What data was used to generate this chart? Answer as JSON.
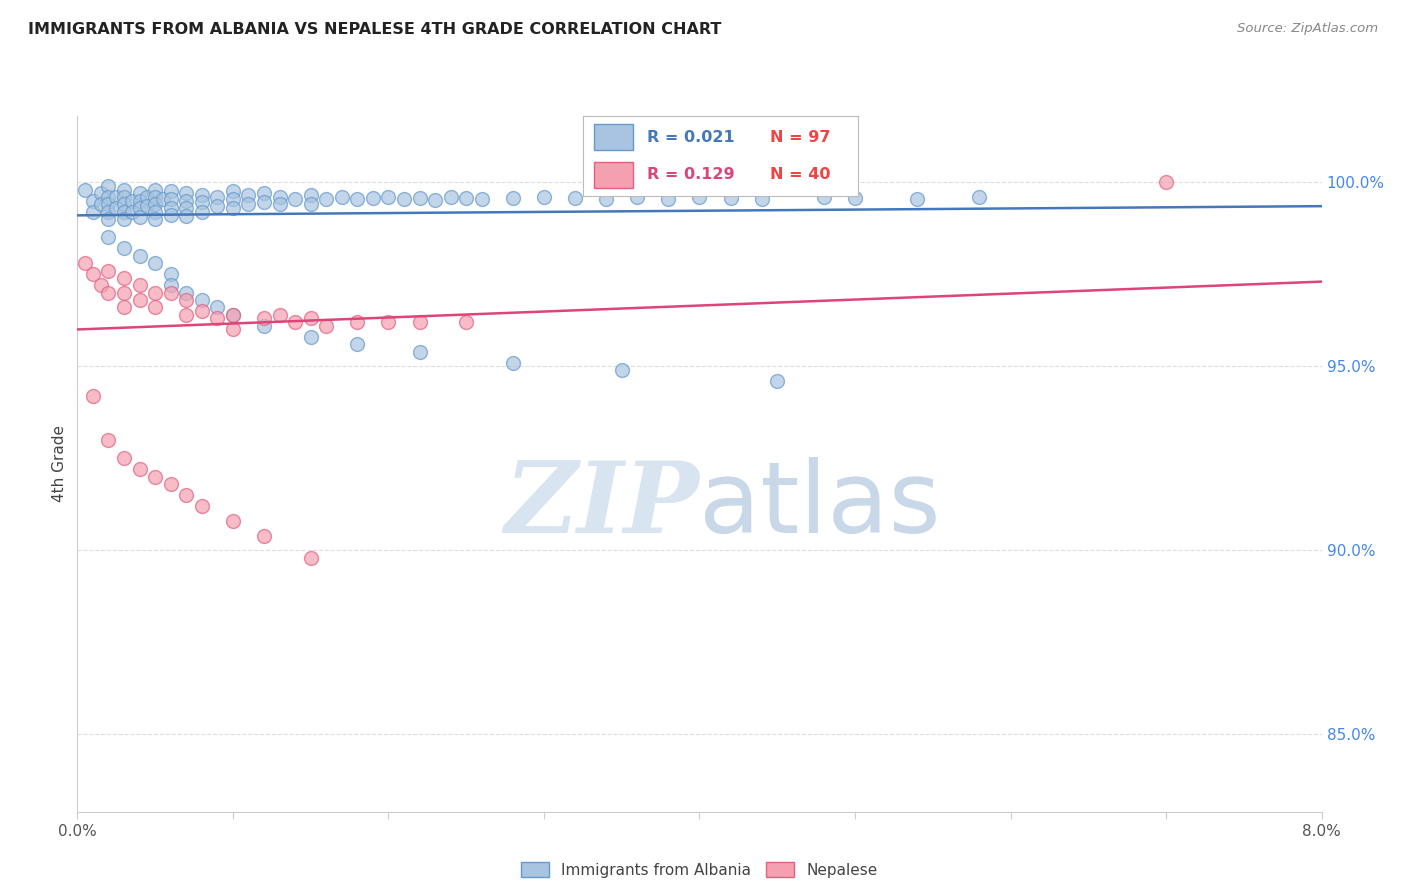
{
  "title": "IMMIGRANTS FROM ALBANIA VS NEPALESE 4TH GRADE CORRELATION CHART",
  "source": "Source: ZipAtlas.com",
  "ylabel": "4th Grade",
  "y_tick_labels": [
    "85.0%",
    "90.0%",
    "95.0%",
    "100.0%"
  ],
  "y_tick_values": [
    0.85,
    0.9,
    0.95,
    1.0
  ],
  "xlim": [
    0.0,
    0.08
  ],
  "ylim": [
    0.829,
    1.018
  ],
  "legend_blue_r": "R = 0.021",
  "legend_blue_n": "N = 97",
  "legend_pink_r": "R = 0.129",
  "legend_pink_n": "N = 40",
  "color_blue_face": "#A8C4E0",
  "color_blue_edge": "#6699CC",
  "color_pink_face": "#F4A0B0",
  "color_pink_edge": "#E06080",
  "color_blue_line": "#4477BB",
  "color_pink_line": "#DD4477",
  "blue_scatter_x": [
    0.0005,
    0.001,
    0.001,
    0.0015,
    0.0015,
    0.002,
    0.002,
    0.002,
    0.002,
    0.002,
    0.0025,
    0.0025,
    0.003,
    0.003,
    0.003,
    0.003,
    0.003,
    0.0035,
    0.0035,
    0.004,
    0.004,
    0.004,
    0.004,
    0.0045,
    0.0045,
    0.005,
    0.005,
    0.005,
    0.005,
    0.005,
    0.0055,
    0.006,
    0.006,
    0.006,
    0.006,
    0.007,
    0.007,
    0.007,
    0.007,
    0.008,
    0.008,
    0.008,
    0.009,
    0.009,
    0.01,
    0.01,
    0.01,
    0.011,
    0.011,
    0.012,
    0.012,
    0.013,
    0.013,
    0.014,
    0.015,
    0.015,
    0.016,
    0.017,
    0.018,
    0.019,
    0.02,
    0.021,
    0.022,
    0.023,
    0.024,
    0.025,
    0.026,
    0.028,
    0.03,
    0.032,
    0.034,
    0.036,
    0.038,
    0.04,
    0.042,
    0.044,
    0.048,
    0.05,
    0.054,
    0.058,
    0.002,
    0.003,
    0.004,
    0.005,
    0.006,
    0.006,
    0.007,
    0.008,
    0.009,
    0.01,
    0.012,
    0.015,
    0.018,
    0.022,
    0.028,
    0.035,
    0.045
  ],
  "blue_scatter_y": [
    0.998,
    0.995,
    0.992,
    0.997,
    0.994,
    0.999,
    0.996,
    0.994,
    0.992,
    0.99,
    0.996,
    0.993,
    0.998,
    0.996,
    0.994,
    0.992,
    0.99,
    0.995,
    0.992,
    0.997,
    0.995,
    0.993,
    0.9905,
    0.996,
    0.9935,
    0.998,
    0.996,
    0.994,
    0.992,
    0.99,
    0.9955,
    0.9975,
    0.9955,
    0.993,
    0.991,
    0.997,
    0.995,
    0.993,
    0.9908,
    0.9965,
    0.9945,
    0.992,
    0.996,
    0.9935,
    0.9975,
    0.9955,
    0.993,
    0.9965,
    0.994,
    0.997,
    0.9945,
    0.996,
    0.994,
    0.9955,
    0.9965,
    0.9942,
    0.9955,
    0.996,
    0.9955,
    0.9958,
    0.996,
    0.9955,
    0.9958,
    0.9952,
    0.996,
    0.9958,
    0.9955,
    0.9958,
    0.996,
    0.9958,
    0.9955,
    0.996,
    0.9955,
    0.996,
    0.9958,
    0.9955,
    0.996,
    0.9958,
    0.9955,
    0.996,
    0.985,
    0.982,
    0.98,
    0.978,
    0.975,
    0.972,
    0.97,
    0.968,
    0.966,
    0.964,
    0.961,
    0.958,
    0.956,
    0.954,
    0.951,
    0.949,
    0.946
  ],
  "pink_scatter_x": [
    0.0005,
    0.001,
    0.0015,
    0.002,
    0.002,
    0.003,
    0.003,
    0.003,
    0.004,
    0.004,
    0.005,
    0.005,
    0.006,
    0.007,
    0.007,
    0.008,
    0.009,
    0.01,
    0.01,
    0.012,
    0.013,
    0.014,
    0.015,
    0.016,
    0.018,
    0.02,
    0.022,
    0.025,
    0.002,
    0.003,
    0.004,
    0.005,
    0.006,
    0.007,
    0.008,
    0.01,
    0.012,
    0.015,
    0.07,
    0.001
  ],
  "pink_scatter_y": [
    0.978,
    0.975,
    0.972,
    0.976,
    0.97,
    0.974,
    0.97,
    0.966,
    0.972,
    0.968,
    0.97,
    0.966,
    0.97,
    0.968,
    0.964,
    0.965,
    0.963,
    0.964,
    0.96,
    0.963,
    0.964,
    0.962,
    0.963,
    0.961,
    0.962,
    0.962,
    0.962,
    0.962,
    0.93,
    0.925,
    0.922,
    0.92,
    0.918,
    0.915,
    0.912,
    0.908,
    0.904,
    0.898,
    1.0,
    0.942
  ],
  "blue_line_x": [
    0.0,
    0.08
  ],
  "blue_line_y": [
    0.991,
    0.9935
  ],
  "pink_line_x": [
    0.0,
    0.08
  ],
  "pink_line_y": [
    0.96,
    0.973
  ],
  "watermark_zip": "ZIP",
  "watermark_atlas": "atlas",
  "background_color": "#FFFFFF",
  "grid_color": "#DDDDDD",
  "spine_color": "#CCCCCC"
}
